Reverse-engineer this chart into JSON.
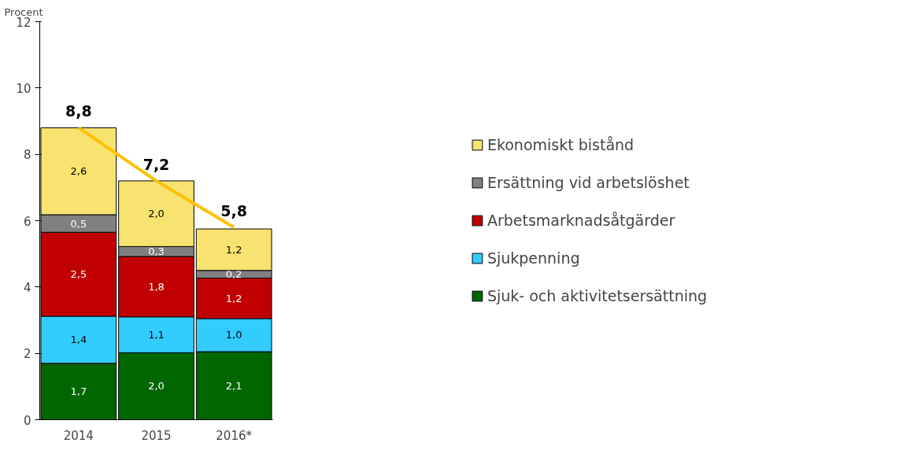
{
  "chart_data": {
    "type": "bar",
    "stacked": true,
    "ylabel": "Procent",
    "categories": [
      "2014",
      "2015",
      "2016*"
    ],
    "series": [
      {
        "name": "Sjuk- och aktivitetsersättning",
        "color": "#006600",
        "values": [
          1.7,
          2.02,
          2.05
        ],
        "value_labels": [
          "1,7",
          "2,0",
          "2,1"
        ]
      },
      {
        "name": "Sjukpenning",
        "color": "#33ccff",
        "values": [
          1.42,
          1.08,
          1.0
        ],
        "value_labels": [
          "1,4",
          "1,1",
          "1,0"
        ]
      },
      {
        "name": "Arbetsmarknadsåtgärder",
        "color": "#c00000",
        "values": [
          2.53,
          1.82,
          1.22
        ],
        "value_labels": [
          "2,5",
          "1,8",
          "1,2"
        ]
      },
      {
        "name": "Ersättning vid arbetslöshet",
        "color": "#808080",
        "values": [
          0.53,
          0.3,
          0.23
        ],
        "value_labels": [
          "0,5",
          "0,3",
          "0,2"
        ]
      },
      {
        "name": "Ekonomiskt bistånd",
        "color": "#f8e270",
        "values": [
          2.62,
          1.98,
          1.25
        ],
        "value_labels": [
          "2,6",
          "2,0",
          "1,2"
        ]
      },
      {
        "type": "line",
        "color": "#ffc000",
        "values": [
          8.8,
          7.2,
          5.8
        ],
        "value_labels": [
          "8,8",
          "7,2",
          "5,8"
        ]
      }
    ],
    "ylim": [
      0,
      12
    ],
    "yticks": [
      0,
      2,
      4,
      6,
      8,
      10,
      12
    ],
    "grid": false,
    "legend": "right"
  }
}
